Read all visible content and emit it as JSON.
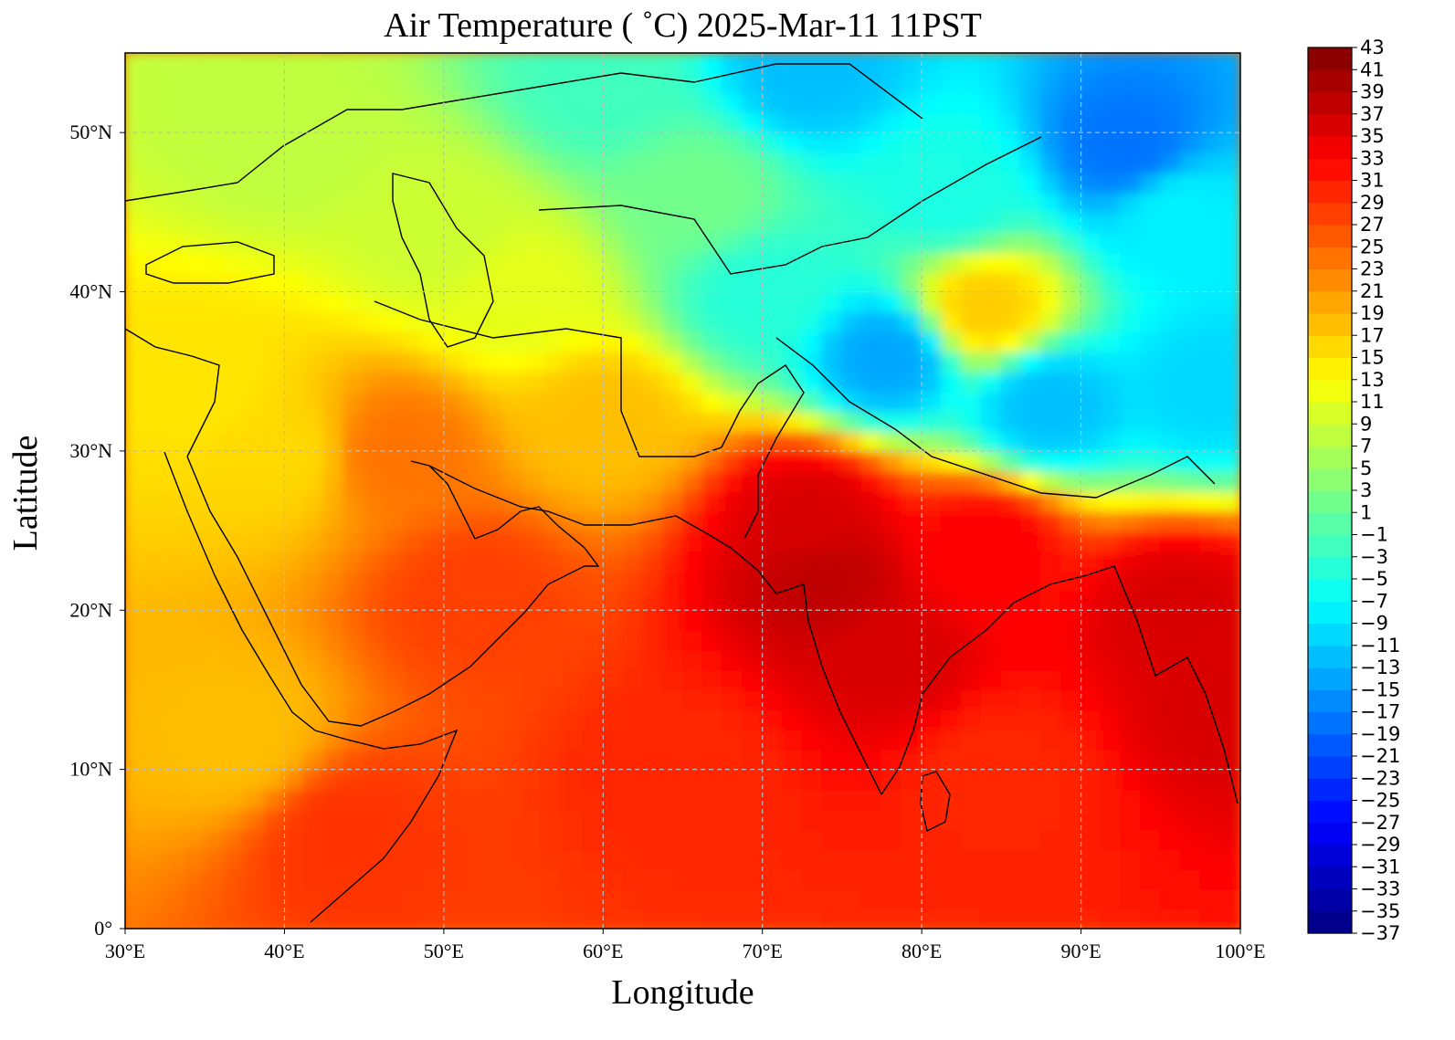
{
  "chart_data": {
    "type": "heatmap",
    "title": "Air Temperature ( ˚C)  2025-Mar-11 11PST",
    "xlabel": "Longitude",
    "ylabel": "Latitude",
    "xlim": [
      30,
      100
    ],
    "ylim": [
      0,
      55
    ],
    "grid": true,
    "x_ticks": [
      {
        "value": 30,
        "label": "30°E"
      },
      {
        "value": 40,
        "label": "40°E"
      },
      {
        "value": 50,
        "label": "50°E"
      },
      {
        "value": 60,
        "label": "60°E"
      },
      {
        "value": 70,
        "label": "70°E"
      },
      {
        "value": 80,
        "label": "80°E"
      },
      {
        "value": 90,
        "label": "90°E"
      },
      {
        "value": 100,
        "label": "100°E"
      }
    ],
    "y_ticks": [
      {
        "value": 0,
        "label": "0°"
      },
      {
        "value": 10,
        "label": "10°N"
      },
      {
        "value": 20,
        "label": "20°N"
      },
      {
        "value": 30,
        "label": "30°N"
      },
      {
        "value": 40,
        "label": "40°N"
      },
      {
        "value": 50,
        "label": "50°N"
      }
    ],
    "colorbar": {
      "min": -37,
      "max": 43,
      "step": 2,
      "ticks": [
        43,
        41,
        39,
        37,
        35,
        33,
        31,
        29,
        27,
        25,
        23,
        21,
        19,
        17,
        15,
        13,
        11,
        9,
        7,
        5,
        3,
        1,
        -1,
        -3,
        -5,
        -7,
        -9,
        -11,
        -13,
        -15,
        -17,
        -19,
        -21,
        -23,
        -25,
        -27,
        -29,
        -31,
        -33,
        -35,
        -37
      ],
      "tick_labels": [
        "43",
        "41",
        "39",
        "37",
        "35",
        "33",
        "31",
        "29",
        "27",
        "25",
        "23",
        "21",
        "19",
        "17",
        "15",
        "13",
        "11",
        "9",
        "7",
        "5",
        "3",
        "1",
        "−1",
        "−3",
        "−5",
        "−7",
        "−9",
        "−11",
        "−13",
        "−15",
        "−17",
        "−19",
        "−21",
        "−23",
        "−25",
        "−27",
        "−29",
        "−31",
        "−33",
        "−35",
        "−37"
      ],
      "colormap": "jet"
    },
    "regions": [
      {
        "lon": 74,
        "lat": 22,
        "value": 38
      },
      {
        "lon": 78,
        "lat": 17,
        "value": 36
      },
      {
        "lon": 73,
        "lat": 26,
        "value": 36
      },
      {
        "lon": 96,
        "lat": 20,
        "value": 36
      },
      {
        "lon": 99,
        "lat": 14,
        "value": 36
      },
      {
        "lon": 84,
        "lat": 24,
        "value": 33
      },
      {
        "lon": 65,
        "lat": 10,
        "value": 30
      },
      {
        "lon": 85,
        "lat": 10,
        "value": 30
      },
      {
        "lon": 52,
        "lat": 21,
        "value": 28
      },
      {
        "lon": 44,
        "lat": 6,
        "value": 29
      },
      {
        "lon": 37,
        "lat": 12,
        "value": 18
      },
      {
        "lon": 47,
        "lat": 30,
        "value": 24
      },
      {
        "lon": 40,
        "lat": 30,
        "value": 16
      },
      {
        "lon": 35,
        "lat": 34,
        "value": 15
      },
      {
        "lon": 60,
        "lat": 32,
        "value": 18
      },
      {
        "lon": 55,
        "lat": 40,
        "value": 11
      },
      {
        "lon": 50,
        "lat": 44,
        "value": 9
      },
      {
        "lon": 66,
        "lat": 46,
        "value": 2
      },
      {
        "lon": 40,
        "lat": 50,
        "value": 8
      },
      {
        "lon": 60,
        "lat": 53,
        "value": -2
      },
      {
        "lon": 73,
        "lat": 54,
        "value": -12
      },
      {
        "lon": 84,
        "lat": 39,
        "value": 17
      },
      {
        "lon": 88,
        "lat": 33,
        "value": -12
      },
      {
        "lon": 78,
        "lat": 36,
        "value": -14
      },
      {
        "lon": 93,
        "lat": 49,
        "value": -18
      },
      {
        "lon": 96,
        "lat": 45,
        "value": -8
      },
      {
        "lon": 82,
        "lat": 46,
        "value": -5
      },
      {
        "lon": 70,
        "lat": 40,
        "value": -4
      },
      {
        "lon": 98,
        "lat": 34,
        "value": -10
      }
    ]
  }
}
